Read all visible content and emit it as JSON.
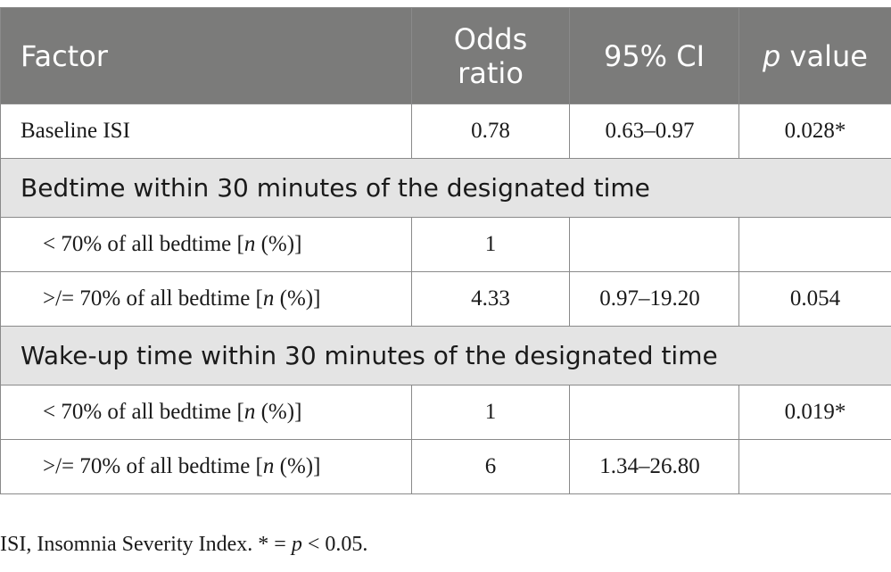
{
  "header": {
    "factor": "Factor",
    "odds_ratio_line1": "Odds",
    "odds_ratio_line2": "ratio",
    "ci": "95% CI",
    "p_italic": "p",
    "p_rest": " value"
  },
  "rows": {
    "baseline": {
      "factor": "Baseline ISI",
      "or": "0.78",
      "ci": "0.63–0.97",
      "p": "0.028*"
    },
    "bedtime_section": "Bedtime within 30 minutes of the designated time",
    "bed_lt": {
      "pre": "< 70% of all bedtime [",
      "n": "n",
      "post": " (%)]",
      "or": "1",
      "ci": "",
      "p": ""
    },
    "bed_ge": {
      "pre": ">/= 70% of all bedtime [",
      "n": "n",
      "post": " (%)]",
      "or": "4.33",
      "ci": "0.97–19.20",
      "p": "0.054"
    },
    "wake_section": "Wake-up time within 30 minutes of the designated time",
    "wake_lt": {
      "pre": "< 70% of all bedtime [",
      "n": "n",
      "post": " (%)]",
      "or": "1",
      "ci": "",
      "p": "0.019*"
    },
    "wake_ge": {
      "pre": ">/= 70% of all bedtime [",
      "n": "n",
      "post": " (%)]",
      "or": "6",
      "ci": "1.34–26.80",
      "p": ""
    }
  },
  "footnote": {
    "pre": "ISI, Insomnia Severity Index. * = ",
    "p": "p",
    "post": " < 0.05."
  }
}
